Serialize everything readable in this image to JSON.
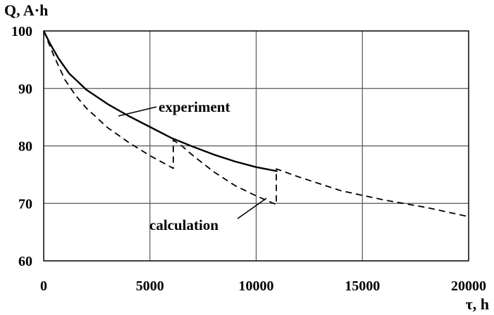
{
  "chart_data": {
    "type": "line",
    "ylabel": "Q, A·h",
    "xlabel": "τ, h",
    "xlim": [
      0,
      20000
    ],
    "ylim": [
      60,
      100
    ],
    "x_ticks": [
      0,
      5000,
      10000,
      15000,
      20000
    ],
    "x_tick_labels": [
      "0",
      "5000",
      "10000",
      "15000",
      "20000"
    ],
    "y_ticks": [
      60,
      70,
      80,
      90,
      100
    ],
    "y_tick_labels": [
      "60",
      "70",
      "80",
      "90",
      "100"
    ],
    "grid": true,
    "series": [
      {
        "name": "experiment",
        "style": "solid",
        "x": [
          0,
          300,
          700,
          1200,
          2000,
          3000,
          4000,
          5000,
          6000,
          7000,
          8000,
          9000,
          10000,
          11000
        ],
        "y": [
          100,
          97.8,
          95.2,
          92.6,
          89.8,
          87.3,
          85.2,
          83.3,
          81.4,
          79.9,
          78.5,
          77.3,
          76.3,
          75.6
        ]
      },
      {
        "name": "calculation",
        "style": "dashed",
        "x": [
          0,
          500,
          1000,
          1500,
          2000,
          3000,
          4000,
          5000,
          6100,
          6100,
          6500,
          7000,
          8000,
          9000,
          10000,
          10950,
          10950,
          12000,
          14000,
          16000,
          18000,
          20000
        ],
        "y": [
          100,
          95.5,
          91.5,
          88.8,
          86.6,
          83.2,
          80.6,
          78.3,
          76.1,
          81.0,
          80.0,
          78.4,
          75.5,
          73.1,
          71.3,
          69.8,
          76.0,
          74.6,
          72.2,
          70.6,
          69.3,
          67.7
        ]
      }
    ],
    "annotations": [
      {
        "text": "experiment",
        "points_to": "experiment"
      },
      {
        "text": "calculation",
        "points_to": "calculation"
      }
    ]
  }
}
